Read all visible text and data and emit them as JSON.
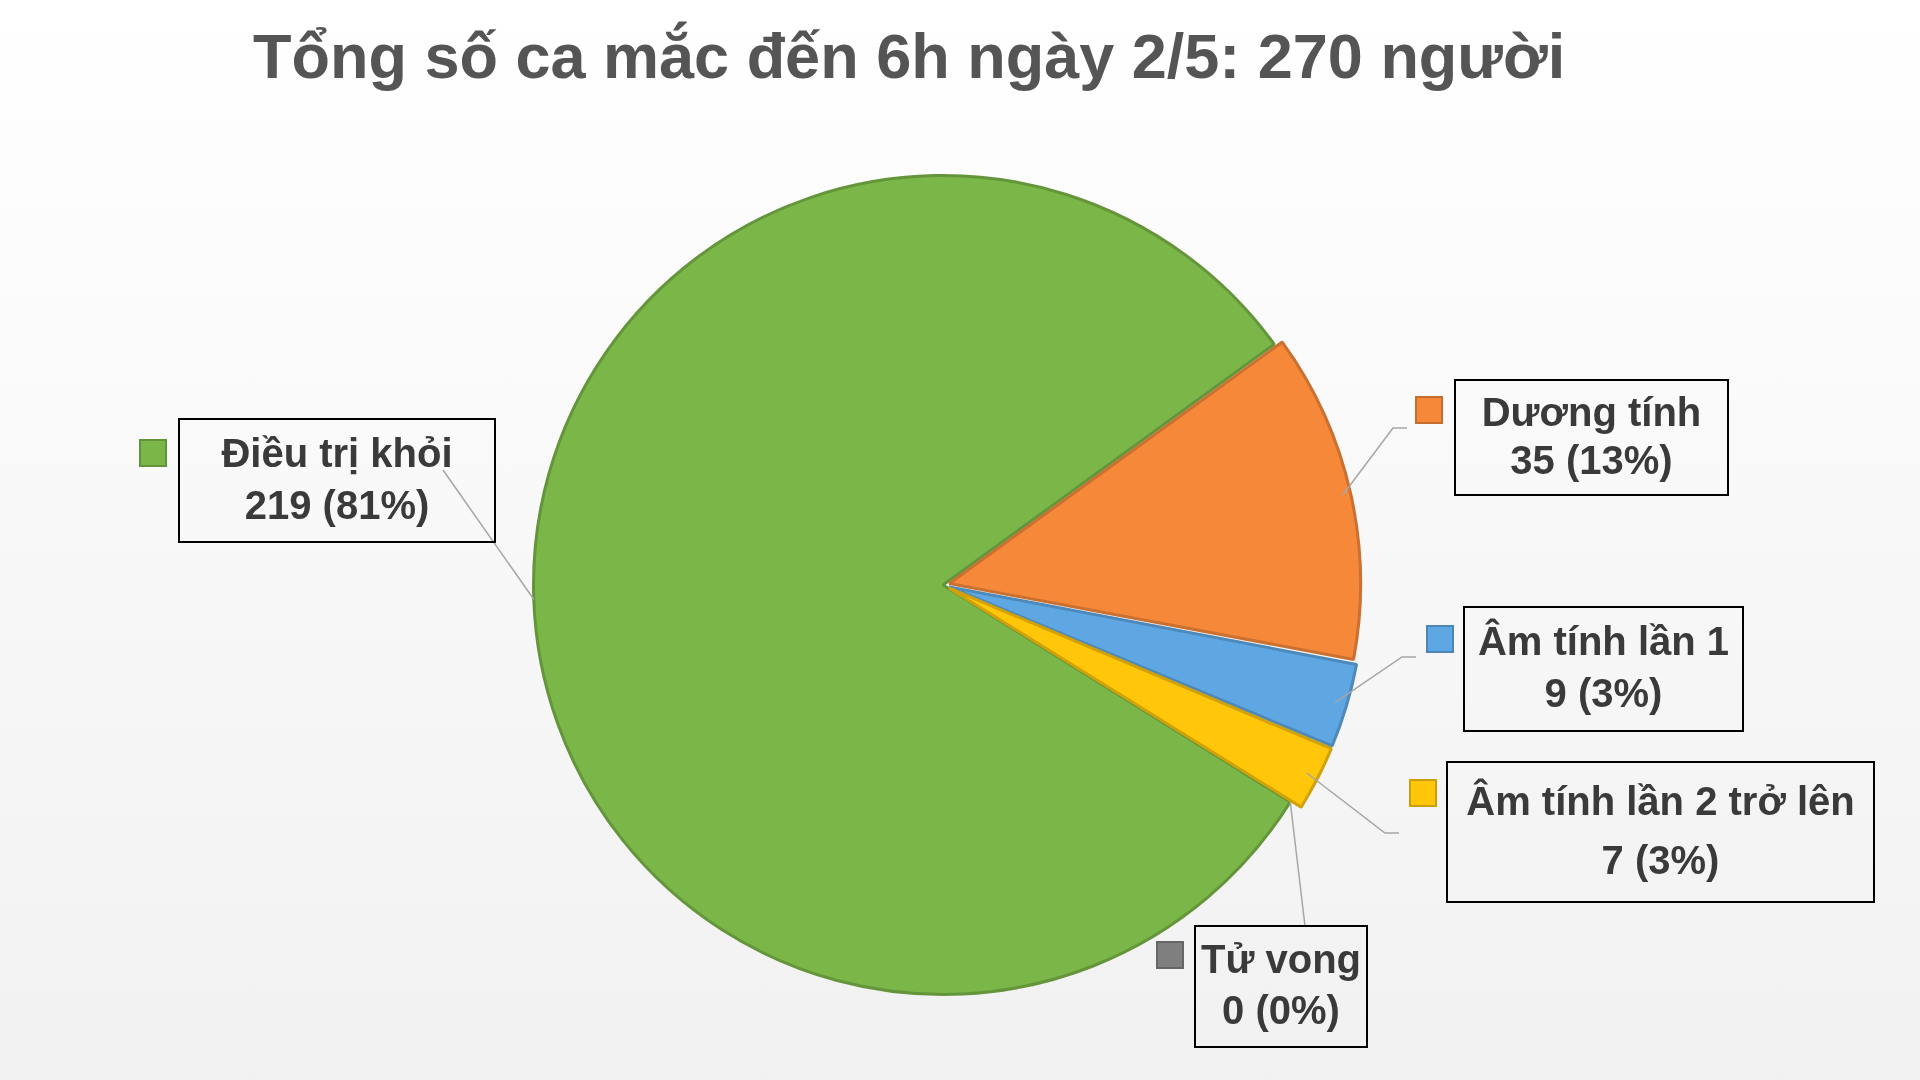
{
  "chart_data": {
    "type": "pie",
    "title": "Tổng số ca mắc đến 6h ngày 2/5: 270 người",
    "categories": [
      "Điều trị khỏi",
      "Dương tính",
      "Âm tính lần 1",
      "Âm tính lần 2 trở lên",
      "Tử vong"
    ],
    "values": [
      219,
      35,
      9,
      7,
      0
    ],
    "colors": [
      "#7ab648",
      "#f6883a",
      "#5ea7e3",
      "#ffc60a",
      "#7f7f7f"
    ],
    "legend": "right",
    "value_labels": [
      "219 (81%)",
      "35 (13%)",
      "9 (3%)",
      "7 (3%)",
      "0 (0%)"
    ]
  }
}
